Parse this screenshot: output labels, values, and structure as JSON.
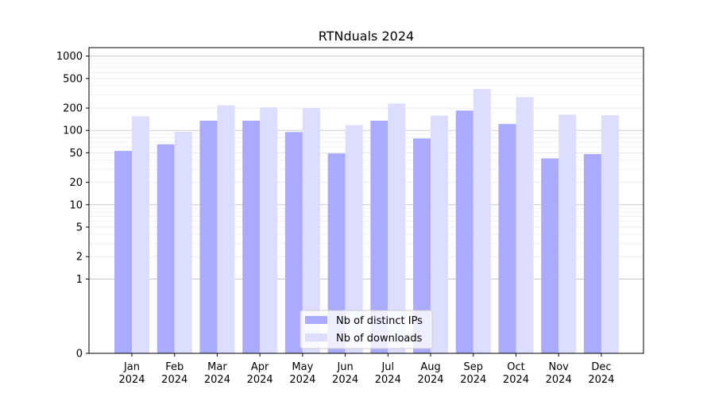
{
  "chart_data": {
    "type": "bar",
    "title": "RTNduals 2024",
    "xlabel": "",
    "ylabel": "",
    "categories": [
      "Jan\n2024",
      "Feb\n2024",
      "Mar\n2024",
      "Apr\n2024",
      "May\n2024",
      "Jun\n2024",
      "Jul\n2024",
      "Aug\n2024",
      "Sep\n2024",
      "Oct\n2024",
      "Nov\n2024",
      "Dec\n2024"
    ],
    "series": [
      {
        "name": "Nb of distinct IPs",
        "color": "#aaaaff",
        "values": [
          53,
          65,
          135,
          135,
          95,
          49,
          135,
          78,
          185,
          122,
          42,
          48
        ]
      },
      {
        "name": "Nb of downloads",
        "color": "#ddddff",
        "values": [
          155,
          96,
          218,
          205,
          200,
          118,
          230,
          158,
          360,
          280,
          163,
          160
        ]
      }
    ],
    "yscale": "symlog",
    "yticks": [
      0,
      1,
      2,
      5,
      10,
      20,
      50,
      100,
      200,
      500,
      1000
    ],
    "ylim": [
      0,
      1300
    ],
    "grid": true,
    "legend_position": "bottom-center"
  }
}
